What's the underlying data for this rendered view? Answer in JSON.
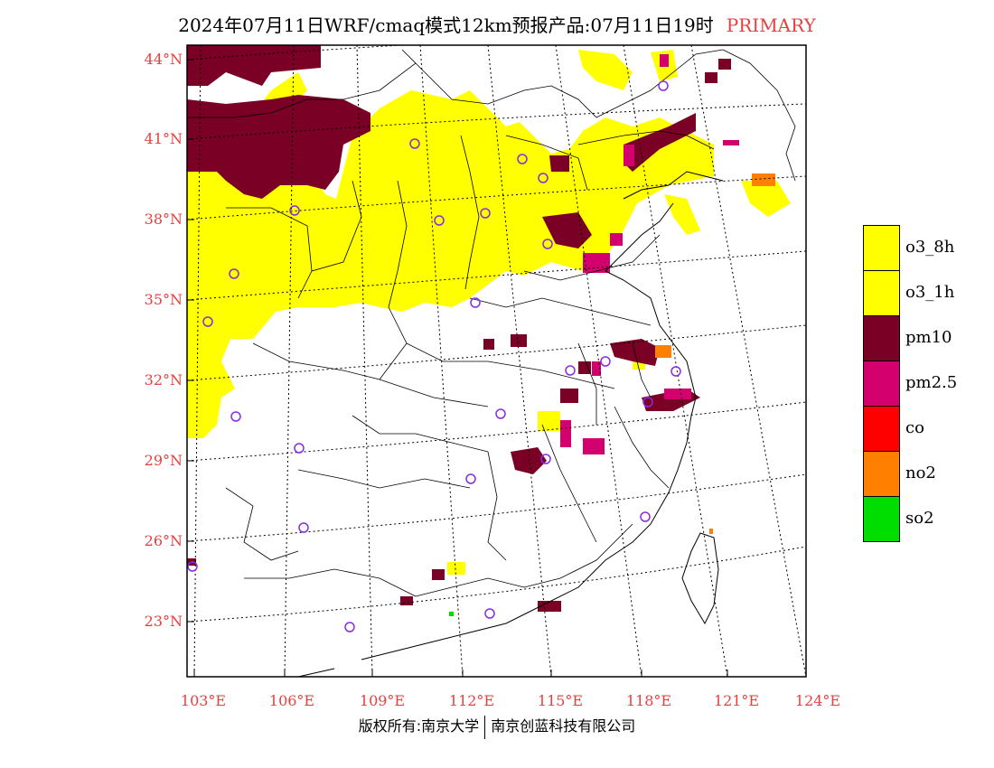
{
  "title": {
    "main": "2024年07月11日WRF/cmaq模式12km预报产品:07月11日19时",
    "tag": "PRIMARY"
  },
  "axes": {
    "lat_labels": [
      "44°N",
      "41°N",
      "38°N",
      "35°N",
      "32°N",
      "29°N",
      "26°N",
      "23°N"
    ],
    "lon_labels": [
      "103°E",
      "106°E",
      "109°E",
      "112°E",
      "115°E",
      "118°E",
      "121°E",
      "124°E"
    ]
  },
  "legend": [
    {
      "label": "o3_8h",
      "color": "#ffff00"
    },
    {
      "label": "o3_1h",
      "color": "#ffff00"
    },
    {
      "label": "pm10",
      "color": "#7a0026"
    },
    {
      "label": "pm2.5",
      "color": "#d4006e"
    },
    {
      "label": "co",
      "color": "#ff0000"
    },
    {
      "label": "no2",
      "color": "#ff8000"
    },
    {
      "label": "so2",
      "color": "#00dd00"
    }
  ],
  "colors": {
    "o3": "#ffff00",
    "pm10": "#7a0026",
    "pm25": "#d4006e",
    "no2": "#ff8000",
    "so2": "#00dd00",
    "station": "#8a2be2",
    "label_red": "#e84040"
  },
  "footer": {
    "left": "版权所有:南京大学",
    "right": "南京创蓝科技有限公司"
  }
}
